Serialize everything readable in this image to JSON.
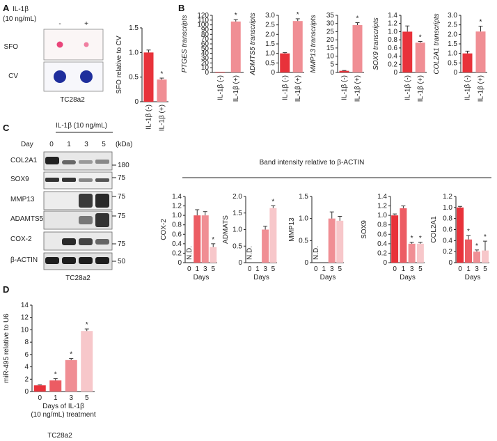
{
  "panels": {
    "a": {
      "label": "A",
      "treatment_label": "IL-1β",
      "treatment_dose": "(10 ng/mL)",
      "lane_minus": "-",
      "lane_plus": "+",
      "row_sfo": "SFO",
      "row_cv": "CV",
      "cell_line": "TC28a2"
    },
    "b": {
      "label": "B"
    },
    "c": {
      "label": "C",
      "treatment_title": "IL-1β (10 ng/mL)",
      "day_label": "Day",
      "days": [
        "0",
        "1",
        "3",
        "5"
      ],
      "kda_label": "(kDa)",
      "cell_line": "TC28a2",
      "band_title": "Band intensity relative to β-ACTIN",
      "blots": [
        {
          "name": "COL2A1",
          "kda": "180"
        },
        {
          "name": "SOX9",
          "kda": "75"
        },
        {
          "name": "MMP13",
          "kda": "75"
        },
        {
          "name": "ADAMTS5",
          "kda": "75"
        },
        {
          "name": "COX-2",
          "kda": "75"
        },
        {
          "name": "β-ACTIN",
          "kda": "50"
        }
      ]
    },
    "d": {
      "label": "D",
      "cell_line": "TC28a2"
    }
  },
  "colors": {
    "series": [
      "#e8323a",
      "#ec5c63",
      "#f08e94",
      "#f7c7ca"
    ]
  },
  "chart_data": [
    {
      "id": "a-sfo",
      "type": "bar",
      "categories": [
        "IL-1β (-)",
        "IL-1β (+)"
      ],
      "values": [
        1.0,
        0.45
      ],
      "errors": [
        0.05,
        0.03
      ],
      "sig": [
        "",
        "*"
      ],
      "ylabel": "SFO relative to CV",
      "ylim": [
        0,
        1.5
      ],
      "yticks": [
        "0",
        "0.5",
        "1.0",
        "1.5"
      ],
      "xlabel": ""
    },
    {
      "id": "b-ptges",
      "type": "bar",
      "categories": [
        "IL-1β (-)",
        "IL-1β (+)"
      ],
      "values": [
        0.5,
        107
      ],
      "errors": [
        0,
        4
      ],
      "sig": [
        "",
        "*"
      ],
      "ylabel": "PTGES transcripts",
      "ylim": [
        0,
        120
      ],
      "yticks": [
        "0",
        "10",
        "20",
        "30",
        "40",
        "50",
        "60",
        "70",
        "80",
        "90",
        "100",
        "110",
        "120"
      ],
      "xlabel": ""
    },
    {
      "id": "b-adamts5",
      "type": "bar",
      "categories": [
        "IL-1β (-)",
        "IL-1β (+)"
      ],
      "values": [
        1.0,
        2.7
      ],
      "errors": [
        0.04,
        0.12
      ],
      "sig": [
        "",
        "*"
      ],
      "ylabel": "ADMTS5 transcripts",
      "ylim": [
        0,
        3.0
      ],
      "yticks": [
        "0",
        "0.5",
        "1.0",
        "1.5",
        "2.0",
        "2.5",
        "3.0"
      ],
      "xlabel": ""
    },
    {
      "id": "b-mmp13",
      "type": "bar",
      "categories": [
        "IL-1β (-)",
        "IL-1β (+)"
      ],
      "values": [
        1.0,
        29
      ],
      "errors": [
        0.2,
        1.5
      ],
      "sig": [
        "",
        "*"
      ],
      "ylabel": "MMP13 transcripts",
      "ylim": [
        0,
        35
      ],
      "yticks": [
        "0",
        "5",
        "10",
        "15",
        "20",
        "25",
        "30",
        "35"
      ],
      "xlabel": ""
    },
    {
      "id": "b-sox9",
      "type": "bar",
      "categories": [
        "IL-1β (-)",
        "IL-1β (+)"
      ],
      "values": [
        1.0,
        0.73
      ],
      "errors": [
        0.14,
        0.03
      ],
      "sig": [
        "",
        "*"
      ],
      "ylabel": "SOX9 transcripts",
      "ylim": [
        0,
        1.4
      ],
      "yticks": [
        "0",
        "0.2",
        "0.4",
        "0.6",
        "0.8",
        "1.0",
        "1.2",
        "1.4"
      ],
      "xlabel": ""
    },
    {
      "id": "b-col2a1",
      "type": "bar",
      "categories": [
        "IL-1β (-)",
        "IL-1β (+)"
      ],
      "values": [
        1.0,
        2.15
      ],
      "errors": [
        0.12,
        0.28
      ],
      "sig": [
        "",
        "*"
      ],
      "ylabel": "COL2A1 transcripts",
      "ylim": [
        0,
        3.0
      ],
      "yticks": [
        "0",
        "0.5",
        "1.0",
        "1.5",
        "2.0",
        "2.5",
        "3.0"
      ],
      "xlabel": ""
    },
    {
      "id": "c-cox2",
      "type": "bar",
      "categories": [
        "0",
        "1",
        "3",
        "5"
      ],
      "values": [
        null,
        1.0,
        1.0,
        0.33
      ],
      "errors": [
        0,
        0.12,
        0.08,
        0.07
      ],
      "sig": [
        "",
        "",
        "",
        "*"
      ],
      "nd": [
        "N.D.",
        "",
        "",
        ""
      ],
      "ylabel": "COX-2",
      "ylim": [
        0,
        1.4
      ],
      "yticks": [
        "0",
        "0.2",
        "0.4",
        "0.6",
        "0.8",
        "1.0",
        "1.2",
        "1.4"
      ],
      "xlabel": "Days"
    },
    {
      "id": "c-admats",
      "type": "bar",
      "categories": [
        "0",
        "1",
        "3",
        "5"
      ],
      "values": [
        null,
        null,
        1.0,
        1.65
      ],
      "errors": [
        0,
        0,
        0.1,
        0.07
      ],
      "sig": [
        "",
        "",
        "",
        "*"
      ],
      "nd": [
        "N.D.",
        "",
        "",
        ""
      ],
      "ylabel": "ADMATS",
      "ylim": [
        0,
        2.0
      ],
      "yticks": [
        "0",
        "0.5",
        "1.0",
        "1.5",
        "2.0"
      ],
      "xlabel": "Days"
    },
    {
      "id": "c-mmp13",
      "type": "bar",
      "categories": [
        "0",
        "1",
        "3",
        "5"
      ],
      "values": [
        null,
        null,
        1.0,
        0.95
      ],
      "errors": [
        0,
        0,
        0.15,
        0.1
      ],
      "sig": [
        "",
        "",
        "",
        ""
      ],
      "nd": [
        "N.D.",
        "",
        "",
        ""
      ],
      "ylabel": "MMP13",
      "ylim": [
        0,
        1.5
      ],
      "yticks": [
        "0",
        "0.5",
        "1.0",
        "1.5"
      ],
      "xlabel": "Days"
    },
    {
      "id": "c-sox9",
      "type": "bar",
      "categories": [
        "0",
        "1",
        "3",
        "5"
      ],
      "values": [
        1.0,
        1.15,
        0.4,
        0.4
      ],
      "errors": [
        0.03,
        0.05,
        0.03,
        0.03
      ],
      "sig": [
        "",
        "",
        "*",
        "*"
      ],
      "nd": [
        "",
        "",
        "",
        ""
      ],
      "ylabel": "SOX9",
      "ylim": [
        0,
        1.4
      ],
      "yticks": [
        "0",
        "0.2",
        "0.4",
        "0.6",
        "0.8",
        "1.0",
        "1.2",
        "1.4"
      ],
      "xlabel": "Days"
    },
    {
      "id": "c-col2a1",
      "type": "bar",
      "categories": [
        "0",
        "1",
        "3",
        "5"
      ],
      "values": [
        1.0,
        0.42,
        0.2,
        0.22
      ],
      "errors": [
        0.02,
        0.07,
        0.03,
        0.17
      ],
      "sig": [
        "",
        "*",
        "*",
        "*"
      ],
      "nd": [
        "",
        "",
        "",
        ""
      ],
      "ylabel": "COL2A1",
      "ylim": [
        0,
        1.2
      ],
      "yticks": [
        "0",
        "0.2",
        "0.4",
        "0.6",
        "0.8",
        "1.0",
        "1.2"
      ],
      "xlabel": "Days"
    },
    {
      "id": "d-mir495",
      "type": "bar",
      "categories": [
        "0",
        "1",
        "3",
        "5"
      ],
      "values": [
        1.0,
        1.8,
        5.1,
        9.8
      ],
      "errors": [
        0.1,
        0.3,
        0.25,
        0.35
      ],
      "sig": [
        "",
        "*",
        "*",
        "*"
      ],
      "nd": [
        "",
        "",
        "",
        ""
      ],
      "ylabel": "miR-495 relative to U6",
      "ylim": [
        0,
        14
      ],
      "yticks": [
        "0",
        "2",
        "4",
        "6",
        "8",
        "10",
        "12",
        "14"
      ],
      "xlabel": "Days of IL-1β",
      "xlabel2": "(10 ng/mL) treatment"
    }
  ]
}
